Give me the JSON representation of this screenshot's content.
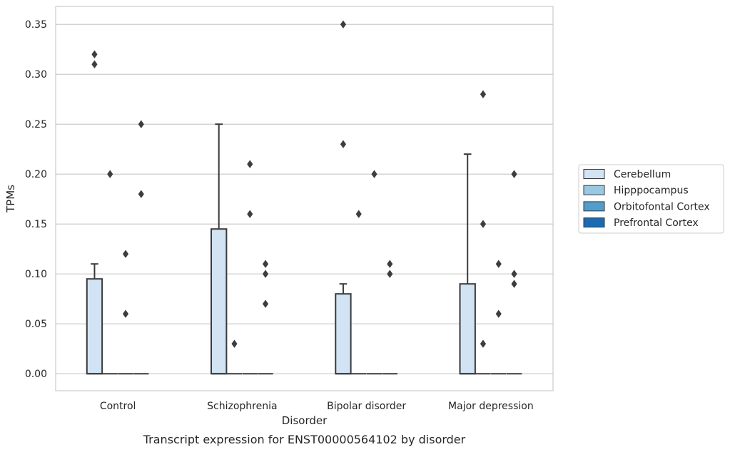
{
  "chart_data": {
    "type": "box",
    "xlabel": "Disorder",
    "ylabel": "TPMs",
    "caption": "Transcript expression for ENST00000564102 by disorder",
    "ylim": [
      -0.017,
      0.368
    ],
    "yticks": [
      0.0,
      0.05,
      0.1,
      0.15,
      0.2,
      0.25,
      0.3,
      0.35
    ],
    "ytick_labels": [
      "0.00",
      "0.05",
      "0.10",
      "0.15",
      "0.20",
      "0.25",
      "0.30",
      "0.35"
    ],
    "grid": "horizontal",
    "legend_position": "right",
    "categories": [
      "Control",
      "Schizophrenia",
      "Bipolar disorder",
      "Major depression"
    ],
    "series": [
      {
        "name": "Cerebellum",
        "color": "#d2e3f3",
        "boxes": [
          {
            "q1": 0.0,
            "median": 0.0,
            "q3": 0.095,
            "whisker_low": 0.0,
            "whisker_high": 0.11,
            "outliers": [
              0.31,
              0.32
            ]
          },
          {
            "q1": 0.0,
            "median": 0.0,
            "q3": 0.145,
            "whisker_low": 0.0,
            "whisker_high": 0.25,
            "outliers": []
          },
          {
            "q1": 0.0,
            "median": 0.0,
            "q3": 0.08,
            "whisker_low": 0.0,
            "whisker_high": 0.09,
            "outliers": [
              0.35,
              0.23
            ]
          },
          {
            "q1": 0.0,
            "median": 0.0,
            "q3": 0.09,
            "whisker_low": 0.0,
            "whisker_high": 0.22,
            "outliers": []
          }
        ]
      },
      {
        "name": "Hipppocampus",
        "color": "#9ac8e0",
        "boxes": [
          {
            "q1": 0.0,
            "median": 0.0,
            "q3": 0.0,
            "whisker_low": 0.0,
            "whisker_high": 0.0,
            "outliers": [
              0.2
            ]
          },
          {
            "q1": 0.0,
            "median": 0.0,
            "q3": 0.0,
            "whisker_low": 0.0,
            "whisker_high": 0.0,
            "outliers": [
              0.03
            ]
          },
          {
            "q1": 0.0,
            "median": 0.0,
            "q3": 0.0,
            "whisker_low": 0.0,
            "whisker_high": 0.0,
            "outliers": [
              0.16
            ]
          },
          {
            "q1": 0.0,
            "median": 0.0,
            "q3": 0.0,
            "whisker_low": 0.0,
            "whisker_high": 0.0,
            "outliers": [
              0.28,
              0.15,
              0.03
            ]
          }
        ]
      },
      {
        "name": "Orbitofontal Cortex",
        "color": "#529dcc",
        "boxes": [
          {
            "q1": 0.0,
            "median": 0.0,
            "q3": 0.0,
            "whisker_low": 0.0,
            "whisker_high": 0.0,
            "outliers": [
              0.12,
              0.06
            ]
          },
          {
            "q1": 0.0,
            "median": 0.0,
            "q3": 0.0,
            "whisker_low": 0.0,
            "whisker_high": 0.0,
            "outliers": [
              0.21,
              0.16
            ]
          },
          {
            "q1": 0.0,
            "median": 0.0,
            "q3": 0.0,
            "whisker_low": 0.0,
            "whisker_high": 0.0,
            "outliers": [
              0.2
            ]
          },
          {
            "q1": 0.0,
            "median": 0.0,
            "q3": 0.0,
            "whisker_low": 0.0,
            "whisker_high": 0.0,
            "outliers": [
              0.11,
              0.06
            ]
          }
        ]
      },
      {
        "name": "Prefrontal Cortex",
        "color": "#1c6aaf",
        "boxes": [
          {
            "q1": 0.0,
            "median": 0.0,
            "q3": 0.0,
            "whisker_low": 0.0,
            "whisker_high": 0.0,
            "outliers": [
              0.25,
              0.18
            ]
          },
          {
            "q1": 0.0,
            "median": 0.0,
            "q3": 0.0,
            "whisker_low": 0.0,
            "whisker_high": 0.0,
            "outliers": [
              0.11,
              0.1,
              0.07
            ]
          },
          {
            "q1": 0.0,
            "median": 0.0,
            "q3": 0.0,
            "whisker_low": 0.0,
            "whisker_high": 0.0,
            "outliers": [
              0.11,
              0.1
            ]
          },
          {
            "q1": 0.0,
            "median": 0.0,
            "q3": 0.0,
            "whisker_low": 0.0,
            "whisker_high": 0.0,
            "outliers": [
              0.2,
              0.1,
              0.09
            ]
          }
        ]
      }
    ]
  }
}
